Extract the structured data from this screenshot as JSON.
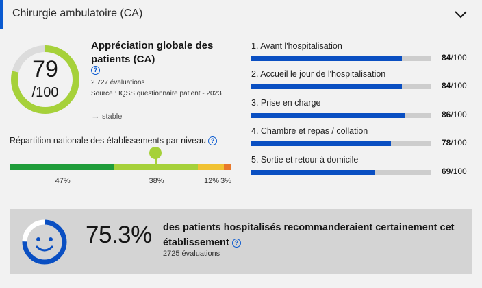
{
  "header": {
    "title": "Chirurgie ambulatoire (CA)"
  },
  "global": {
    "score": "79",
    "score_max": "/100",
    "score_fraction": 0.79,
    "title": "Appréciation globale des patients (CA)",
    "count": "2 727 évaluations",
    "source": "Source : IQSS questionnaire patient - 2023",
    "trend": "stable"
  },
  "repartition": {
    "title": "Répartition nationale des établissements par niveau",
    "segments": [
      {
        "label": "47%",
        "value": 47,
        "color": "#1f9d3a"
      },
      {
        "label": "38%",
        "value": 38,
        "color": "#a6d13a"
      },
      {
        "label": "12%",
        "value": 12,
        "color": "#f1c232"
      },
      {
        "label": "3%",
        "value": 3,
        "color": "#e8792b"
      }
    ]
  },
  "categories": [
    {
      "label": "1. Avant l'hospitalisation",
      "value": "84",
      "max": "/100",
      "fraction": 0.84
    },
    {
      "label": "2. Accueil le jour de l'hospitalisation",
      "value": "84",
      "max": "/100",
      "fraction": 0.84
    },
    {
      "label": "3. Prise en charge",
      "value": "86",
      "max": "/100",
      "fraction": 0.86
    },
    {
      "label": "4. Chambre et repas / collation",
      "value": "78",
      "max": "/100",
      "fraction": 0.78
    },
    {
      "label": "5. Sortie et retour à domicile",
      "value": "69",
      "max": "/100",
      "fraction": 0.69
    }
  ],
  "recommendation": {
    "percent": "75.3%",
    "text": "des patients hospitalisés recommanderaient certainement cet établissement",
    "count": "2725 évaluations",
    "fraction": 0.753
  },
  "colors": {
    "accent": "#0a5ad0",
    "ring": "#a6d13a",
    "bar": "#0a4fc2"
  }
}
